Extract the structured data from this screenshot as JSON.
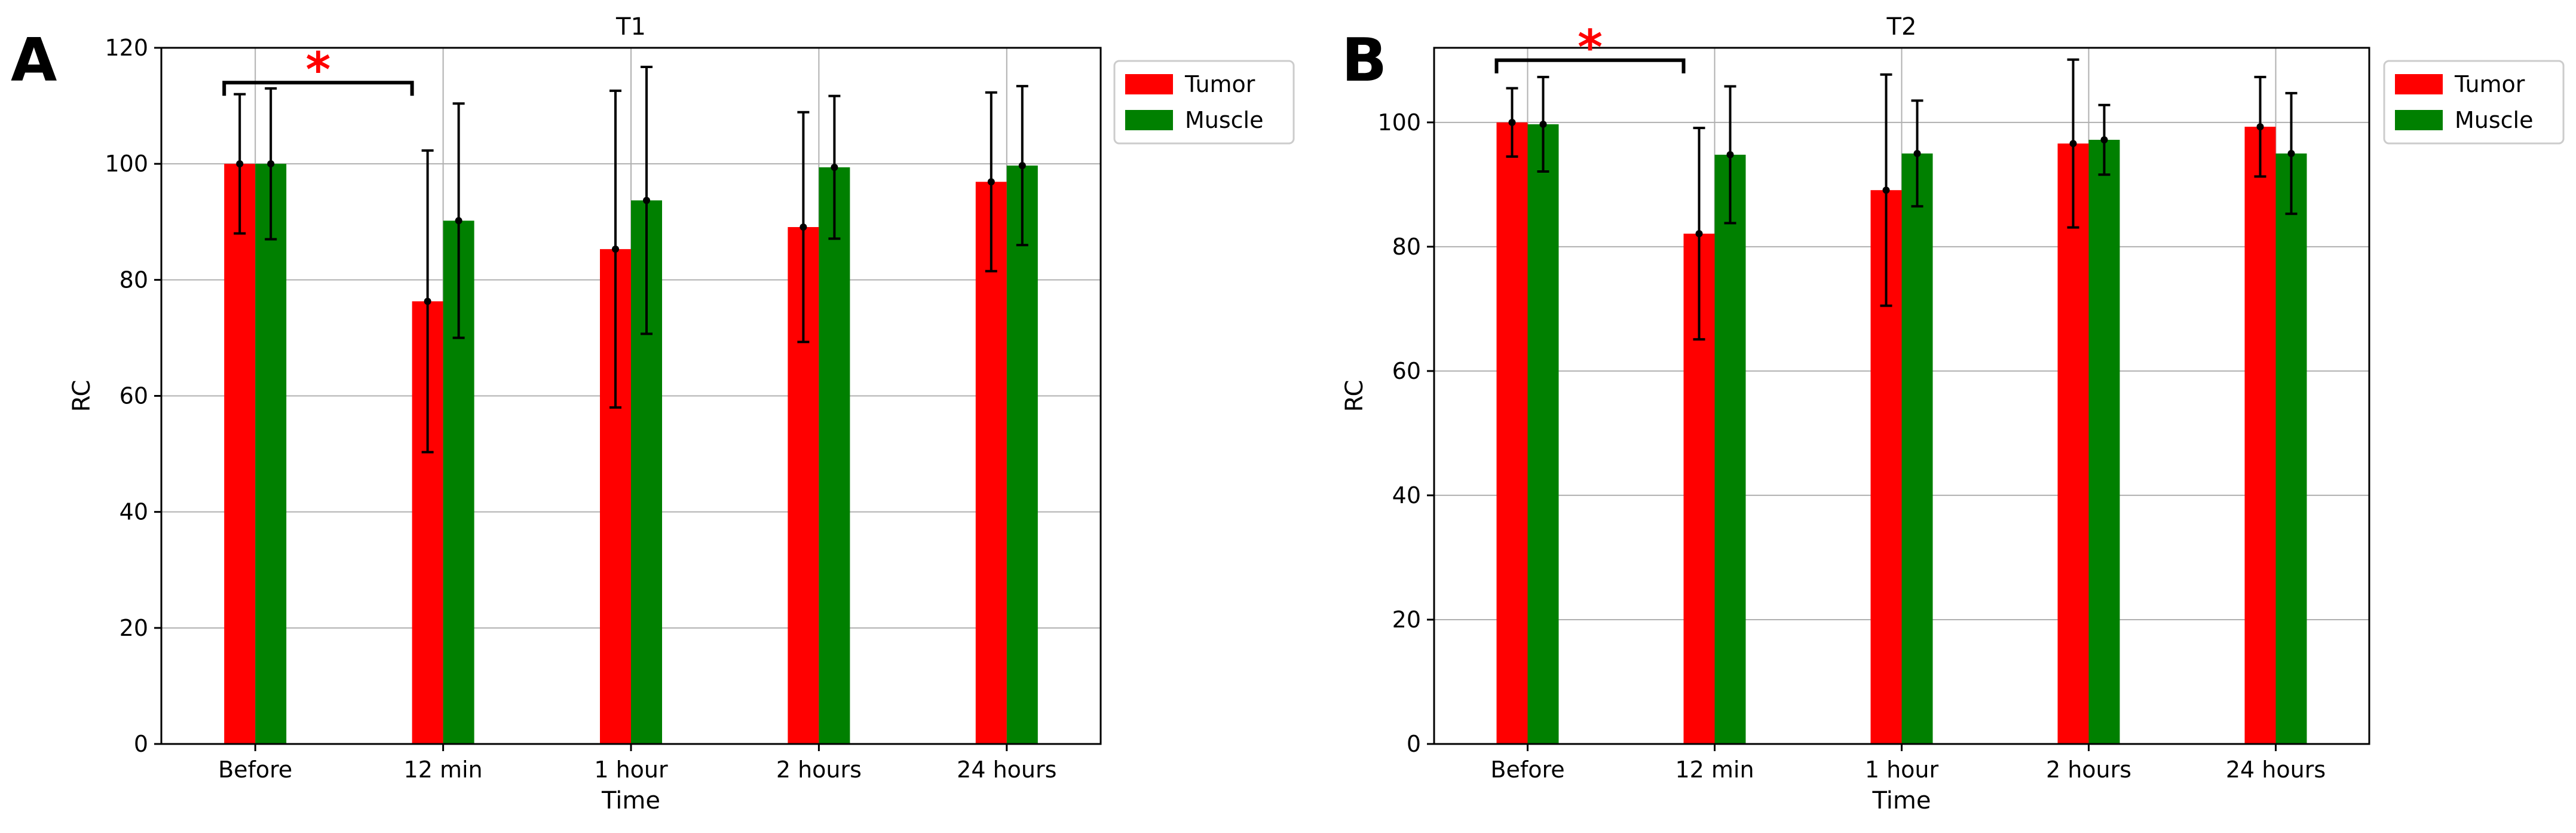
{
  "panels": [
    {
      "letter": "A",
      "title": "T1",
      "xlabel": "Time",
      "ylabel": "RC",
      "yticks": [
        0,
        20,
        40,
        60,
        80,
        100,
        120
      ],
      "ylim": [
        0,
        120
      ],
      "significance": {
        "from": 0,
        "to": 1,
        "level": 114,
        "marker": "*"
      }
    },
    {
      "letter": "B",
      "title": "T2",
      "xlabel": "Time",
      "ylabel": "RC",
      "yticks": [
        0,
        20,
        40,
        60,
        80,
        100
      ],
      "ylim": [
        0,
        112
      ],
      "significance": {
        "from": 0,
        "to": 1,
        "level": 110,
        "marker": "*"
      }
    }
  ],
  "chart_data": [
    {
      "type": "bar",
      "title": "T1",
      "xlabel": "Time",
      "ylabel": "RC",
      "ylim": [
        0,
        120
      ],
      "grid": true,
      "legend": "top-right, outside plot",
      "categories": [
        "Before",
        "12 min",
        "1 hour",
        "2 hours",
        "24 hours"
      ],
      "series": [
        {
          "name": "Tumor",
          "color": "#ff0000",
          "values": [
            100,
            76.3,
            85.3,
            89.1,
            96.9
          ],
          "errors": [
            12,
            26,
            27.3,
            19.8,
            15.4
          ]
        },
        {
          "name": "Muscle",
          "color": "#008000",
          "values": [
            100,
            90.2,
            93.7,
            99.4,
            99.7
          ],
          "errors": [
            13,
            20.2,
            23,
            12.3,
            13.7
          ]
        }
      ]
    },
    {
      "type": "bar",
      "title": "T2",
      "xlabel": "Time",
      "ylabel": "RC",
      "ylim": [
        0,
        112
      ],
      "grid": true,
      "legend": "top-right, outside plot",
      "categories": [
        "Before",
        "12 min",
        "1 hour",
        "2 hours",
        "24 hours"
      ],
      "series": [
        {
          "name": "Tumor",
          "color": "#ff0000",
          "values": [
            100,
            82.1,
            89.1,
            96.6,
            99.3
          ],
          "errors": [
            5.5,
            17,
            18.6,
            13.5,
            8
          ]
        },
        {
          "name": "Muscle",
          "color": "#008000",
          "values": [
            99.7,
            94.8,
            95,
            97.2,
            95
          ],
          "errors": [
            7.6,
            11,
            8.5,
            5.6,
            9.7
          ]
        }
      ]
    }
  ],
  "style": {
    "panel_letter_color": "#000000",
    "significance_color": "#ff0000",
    "grid_color": "#b0b0b0",
    "axis_color": "#000000",
    "error_bar_color": "#000000"
  }
}
